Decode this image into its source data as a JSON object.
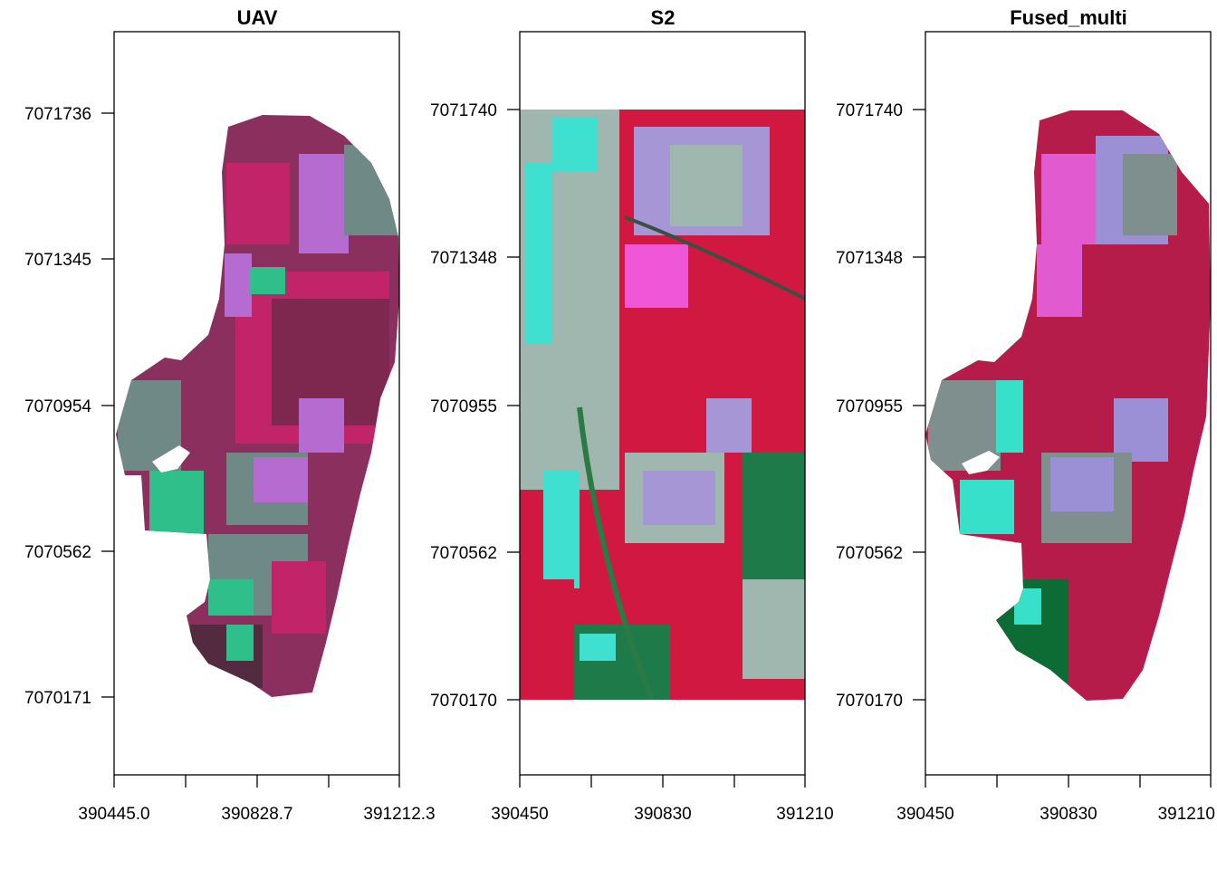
{
  "panels": [
    {
      "title": "UAV",
      "y_ticks": [
        "7071736",
        "7071345",
        "7070954",
        "7070562",
        "7070171"
      ],
      "x_ticks": [
        "390445.0",
        "390828.7",
        "391212.3"
      ],
      "image_colors": [
        "#8a2f5e",
        "#c2246a",
        "#6f8a86",
        "#2fbf8a",
        "#b56bd0",
        "#3a2a34"
      ]
    },
    {
      "title": "S2",
      "y_ticks": [
        "7071740",
        "7071348",
        "7070955",
        "7070562",
        "7070170"
      ],
      "x_ticks": [
        "390450",
        "390830",
        "391210"
      ],
      "image_colors": [
        "#d01840",
        "#9fb7ae",
        "#3fe0d0",
        "#ef56d8",
        "#a796d6",
        "#1f7a4a"
      ]
    },
    {
      "title": "Fused_multi",
      "y_ticks": [
        "7071740",
        "7071348",
        "7070955",
        "7070562",
        "7070170"
      ],
      "x_ticks": [
        "390450",
        "390830",
        "391210"
      ],
      "image_colors": [
        "#b61c4a",
        "#7f8f8e",
        "#37e0c8",
        "#e25ad0",
        "#9b8fd6",
        "#0d6b34"
      ]
    }
  ]
}
